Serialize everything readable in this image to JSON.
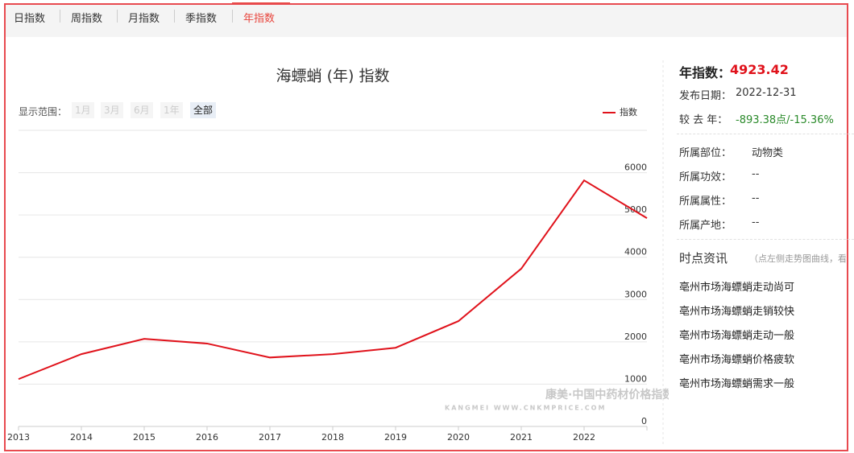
{
  "tabs": [
    "日指数",
    "周指数",
    "月指数",
    "季指数",
    "年指数"
  ],
  "active_tab": 4,
  "range": {
    "label": "显示范围：",
    "options": [
      "1月",
      "3月",
      "6月",
      "1年",
      "全部"
    ],
    "active": 4
  },
  "watermark": {
    "title": "康美·中国中药材价格指数",
    "url": "KANGMEI WWW.CNKMPRICE.COM"
  },
  "chart_data": {
    "type": "line",
    "title": "海螵蛸 (年) 指数",
    "categories": [
      "2013",
      "2014",
      "2015",
      "2016",
      "2017",
      "2018",
      "2019",
      "2020",
      "2021",
      "2022",
      null
    ],
    "series": [
      {
        "name": "指数",
        "color": "#e0121b",
        "values": [
          1120,
          1710,
          2070,
          1960,
          1630,
          1710,
          1860,
          2490,
          3730,
          5816.8,
          4923.42
        ]
      }
    ],
    "ylim": [
      0,
      7000
    ],
    "yticks": [
      0,
      1000,
      2000,
      3000,
      4000,
      5000,
      6000
    ],
    "grid": true,
    "legend": "top-right"
  },
  "panel": {
    "index_label": "年指数：",
    "index_value": "4923.42",
    "date_label": "发布日期：",
    "date_value": "2022-12-31",
    "change_label": "较 去 年：",
    "change_value": "-893.38点/-15.36%",
    "attributes": [
      [
        "所属部位：",
        "动物类"
      ],
      [
        "所属功效：",
        "--"
      ],
      [
        "所属属性：",
        "--"
      ],
      [
        "所属产地：",
        "--"
      ]
    ],
    "news_title": "时点资讯",
    "news_hint": "（点左侧走势图曲线，看",
    "news": [
      "亳州市场海螵蛸走动尚可",
      "亳州市场海螵蛸走销较快",
      "亳州市场海螵蛸走动一般",
      "亳州市场海螵蛸价格疲软",
      "亳州市场海螵蛸需求一般"
    ]
  }
}
